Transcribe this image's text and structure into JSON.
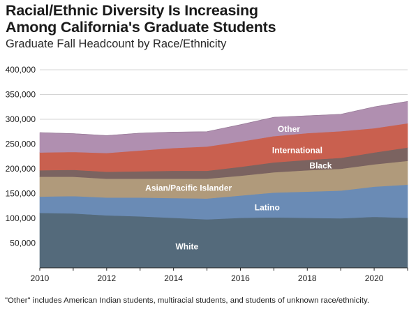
{
  "title_line1": "Racial/Ethnic Diversity Is Increasing",
  "title_line2": "Among California's Graduate Students",
  "subtitle": "Graduate Fall Headcount by Race/Ethnicity",
  "footnote": "\"Other\" includes American Indian students, multiracial students, and students of unknown race/ethnicity.",
  "chart_data": {
    "type": "area",
    "stacked": true,
    "title": "Racial/Ethnic Diversity Is Increasing Among California's Graduate Students",
    "subtitle": "Graduate Fall Headcount by Race/Ethnicity",
    "x": [
      2010,
      2011,
      2012,
      2013,
      2014,
      2015,
      2016,
      2017,
      2018,
      2019,
      2020,
      2021
    ],
    "xticks": [
      2010,
      2012,
      2014,
      2016,
      2018,
      2020
    ],
    "xticklabels": [
      "2010",
      "2012",
      "2014",
      "2016",
      "2018",
      "2020"
    ],
    "xlim": [
      2010,
      2021
    ],
    "ylim": [
      0,
      400000
    ],
    "yticks": [
      50000,
      100000,
      150000,
      200000,
      250000,
      300000,
      350000,
      400000
    ],
    "yticklabels": [
      "50,000",
      "100,000",
      "150,000",
      "200,000",
      "250,000",
      "300,000",
      "350,000",
      "400,000"
    ],
    "grid": true,
    "legend": "inline labels",
    "series": [
      {
        "name": "White",
        "color": "#546a7b",
        "values": [
          111000,
          110000,
          106000,
          104000,
          101000,
          98000,
          101000,
          102000,
          101000,
          100000,
          103000,
          101000
        ]
      },
      {
        "name": "Latino",
        "color": "#6a8bb5",
        "values": [
          33000,
          35000,
          36000,
          38000,
          40000,
          42000,
          45000,
          50000,
          53000,
          56000,
          61000,
          67000
        ]
      },
      {
        "name": "Asian/Pacific Islander",
        "color": "#b09a7b",
        "values": [
          40000,
          39000,
          38000,
          38000,
          39000,
          40000,
          40000,
          41000,
          43000,
          44000,
          45000,
          48000
        ]
      },
      {
        "name": "Black",
        "color": "#7b6360",
        "values": [
          13000,
          14000,
          14000,
          15000,
          16000,
          16000,
          18000,
          20000,
          21000,
          22000,
          24000,
          27000
        ]
      },
      {
        "name": "International",
        "color": "#c9604f",
        "values": [
          36000,
          36000,
          38000,
          42000,
          46000,
          49000,
          51000,
          53000,
          54000,
          54000,
          49000,
          49000
        ]
      },
      {
        "name": "Other",
        "color": "#b08fb0",
        "values": [
          40000,
          37000,
          35000,
          35000,
          32000,
          30000,
          34000,
          38000,
          35000,
          34000,
          43000,
          44000
        ]
      }
    ],
    "labels": [
      {
        "text": "White",
        "series": "White",
        "x": 2014.4,
        "y": 43000
      },
      {
        "text": "Latino",
        "series": "Latino",
        "x": 2016.8,
        "y": 122000
      },
      {
        "text": "Asian/Pacific Islander",
        "series": "Asian/Pacific Islander",
        "x": 2014.45,
        "y": 161000
      },
      {
        "text": "Black",
        "series": "Black",
        "x": 2018.4,
        "y": 206000
      },
      {
        "text": "International",
        "series": "International",
        "x": 2017.7,
        "y": 237000
      },
      {
        "text": "Other",
        "series": "Other",
        "x": 2017.45,
        "y": 280000
      }
    ]
  }
}
